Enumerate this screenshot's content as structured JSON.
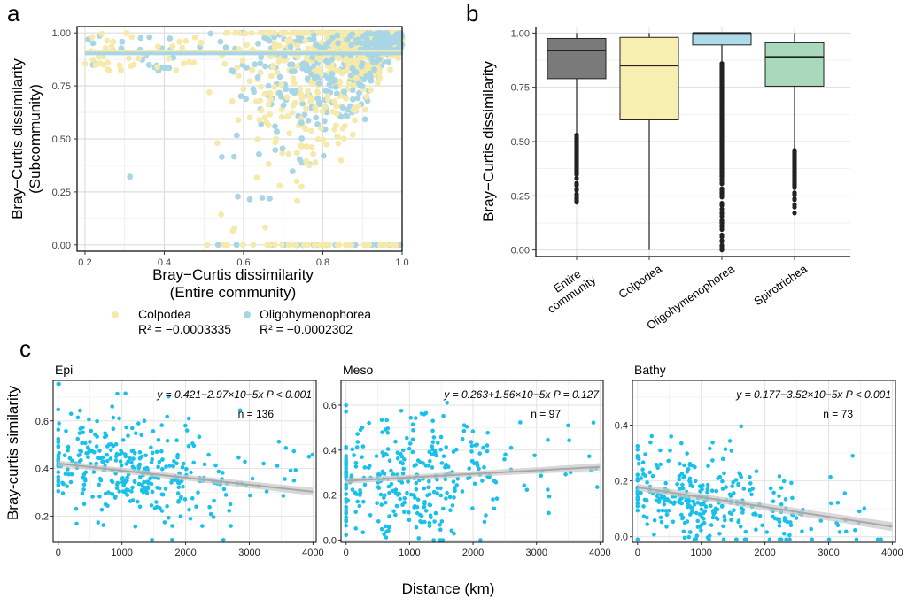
{
  "panels": {
    "a": "a",
    "b": "b",
    "c": "c"
  },
  "colors": {
    "colpodea": "#f5eaaa",
    "oligo": "#a9d6e5",
    "entire": "#7a7a7a",
    "colpodea_box": "#f7efb0",
    "oligo_box": "#aedbea",
    "spiro_box": "#a9d8bd",
    "point_c": "#18c0ea",
    "trend": "#a8a8a8",
    "band": "#c8c8c8",
    "grid": "#e3e3e3"
  },
  "legend": {
    "items": [
      {
        "name": "Colpodea",
        "r2": "R² = −0.0003335"
      },
      {
        "name": "Oligohymenophorea",
        "r2": "R² = −0.0002302"
      }
    ]
  },
  "chart_data": [
    {
      "id": "a",
      "type": "scatter",
      "xlabel": "Bray−Curtis dissimilarity",
      "xlabel2": "(Entire community)",
      "ylabel": "Bray−Curtis dissimilarity",
      "ylabel2": "(Subcommunity)",
      "xlim": [
        0.18,
        1.0
      ],
      "ylim": [
        -0.03,
        1.03
      ],
      "xticks": [
        "0.2",
        "0.4",
        "0.6",
        "0.8",
        "1.0"
      ],
      "yticks": [
        "0.00",
        "0.25",
        "0.50",
        "0.75",
        "1.00"
      ],
      "series": [
        {
          "name": "Colpodea",
          "color": "#f5eaaa",
          "fit": 0.913
        },
        {
          "name": "Oligohymenophorea",
          "color": "#a9d6e5",
          "fit": 0.903
        }
      ]
    },
    {
      "id": "b",
      "type": "box",
      "ylabel": "Bray−Curtis dissimilarity",
      "ylim": [
        -0.03,
        1.03
      ],
      "yticks": [
        "0.00",
        "0.25",
        "0.50",
        "0.75",
        "1.00"
      ],
      "categories": [
        "Entire community",
        "Colpodea",
        "Oligohymenophorea",
        "Spirotrichea"
      ],
      "boxes": [
        {
          "q1": 0.79,
          "median": 0.92,
          "q3": 0.975,
          "whisker_low": 0.53,
          "whisker_high": 1.0,
          "outlier_min": 0.22
        },
        {
          "q1": 0.6,
          "median": 0.85,
          "q3": 0.98,
          "whisker_low": 0.0,
          "whisker_high": 1.0,
          "outlier_min": 0.0
        },
        {
          "q1": 0.945,
          "median": 1.0,
          "q3": 1.0,
          "whisker_low": 0.86,
          "whisker_high": 1.0,
          "outlier_min": 0.0
        },
        {
          "q1": 0.755,
          "median": 0.89,
          "q3": 0.955,
          "whisker_low": 0.46,
          "whisker_high": 1.0,
          "outlier_min": 0.17
        }
      ]
    },
    {
      "id": "c",
      "type": "scatter",
      "xlabel": "Distance (km)",
      "ylabel": "Bray-curtis similarity",
      "facets": [
        {
          "title": "Epi",
          "equation": "y = 0.421−2.97×10−5x  P < 0.001",
          "n": "n = 136",
          "intercept": 0.421,
          "slope": -2.97e-05,
          "ylim": [
            0.09,
            0.77
          ],
          "yticks": [
            0.2,
            0.4,
            0.6
          ],
          "xlim": [
            -80,
            4050
          ],
          "xticks": [
            0,
            1000,
            2000,
            3000,
            4000
          ]
        },
        {
          "title": "Meso",
          "equation": "y = 0.263+1.56×10−5x  P = 0.127",
          "n": "n = 97",
          "intercept": 0.263,
          "slope": 1.56e-05,
          "ylim": [
            -0.01,
            0.71
          ],
          "yticks": [
            0.0,
            0.2,
            0.4,
            0.6
          ],
          "xlim": [
            -80,
            4050
          ],
          "xticks": [
            0,
            1000,
            2000,
            3000,
            4000
          ]
        },
        {
          "title": "Bathy",
          "equation": "y = 0.177−3.52×10−5x  P < 0.001",
          "n": "n = 73",
          "intercept": 0.177,
          "slope": -3.52e-05,
          "ylim": [
            -0.02,
            0.56
          ],
          "yticks": [
            0.0,
            0.2,
            0.4
          ],
          "xlim": [
            -80,
            4050
          ],
          "xticks": [
            0,
            1000,
            2000,
            3000,
            4000
          ]
        }
      ]
    }
  ]
}
